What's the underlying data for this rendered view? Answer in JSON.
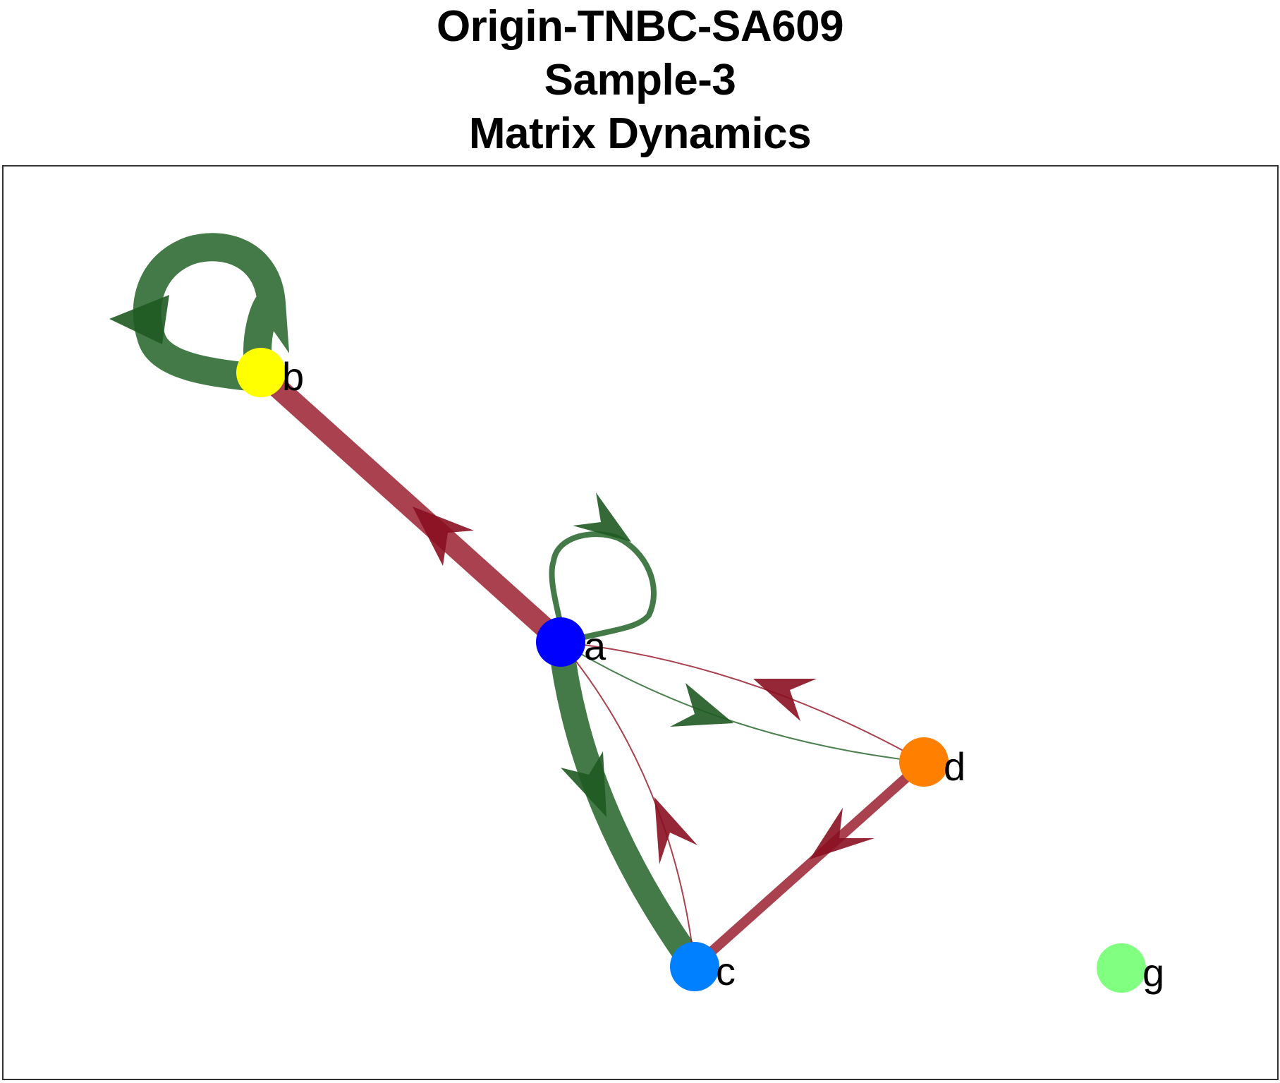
{
  "title": {
    "line1": "Origin-TNBC-SA609",
    "line2": "Sample-3",
    "line3": "Matrix Dynamics"
  },
  "colors": {
    "positive": "#2f6b33",
    "negative": "#9a2030",
    "positive_arrow": "#1f5a22",
    "negative_arrow": "#8a1020"
  },
  "nodes": [
    {
      "id": "a",
      "label": "a",
      "color": "#0000ff"
    },
    {
      "id": "b",
      "label": "b",
      "color": "#ffff00"
    },
    {
      "id": "c",
      "label": "c",
      "color": "#0080ff"
    },
    {
      "id": "d",
      "label": "d",
      "color": "#ff8000"
    },
    {
      "id": "g",
      "label": "g",
      "color": "#80ff80"
    }
  ],
  "edges": [
    {
      "from": "b",
      "to": "b",
      "sign": "positive",
      "weight": "strong"
    },
    {
      "from": "a",
      "to": "a",
      "sign": "positive",
      "weight": "weak"
    },
    {
      "from": "a",
      "to": "b",
      "sign": "negative",
      "weight": "strong"
    },
    {
      "from": "a",
      "to": "c",
      "sign": "positive",
      "weight": "strong"
    },
    {
      "from": "c",
      "to": "a",
      "sign": "negative",
      "weight": "thin"
    },
    {
      "from": "a",
      "to": "d",
      "sign": "positive",
      "weight": "thin"
    },
    {
      "from": "d",
      "to": "a",
      "sign": "negative",
      "weight": "thin"
    },
    {
      "from": "d",
      "to": "c",
      "sign": "negative",
      "weight": "medium"
    }
  ]
}
